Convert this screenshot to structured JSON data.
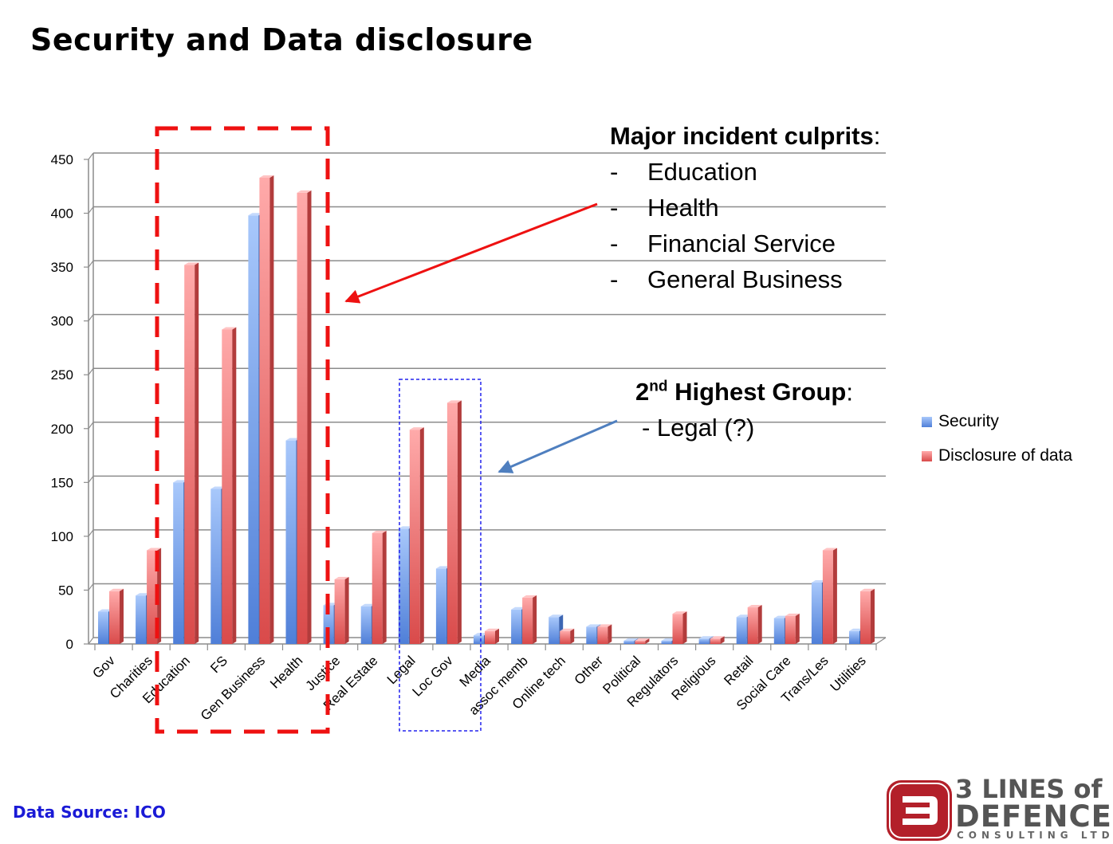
{
  "title": "Security and Data disclosure",
  "annotations": {
    "culprits_heading": "Major incident culprits",
    "culprits_colon": ":",
    "culprits_dash": "-",
    "culprits": [
      "Education",
      "Health",
      "Financial Service",
      "General Business"
    ],
    "second_heading_num": "2",
    "second_heading_sup": "nd",
    "second_heading_rest": " Highest Group",
    "second_colon": ":",
    "second_item": "- Legal (?)"
  },
  "legend": {
    "security": "Security",
    "disclosure": "Disclosure of data"
  },
  "data_source": "Data Source: ICO",
  "logo": {
    "line1": "3 LINES of",
    "line2": "DEFENCE",
    "line3": "CONSULTING LTD"
  },
  "colors": {
    "security": "#5b8fe0",
    "disclosure": "#e86a6a",
    "highlight_red": "#ee1111",
    "highlight_blue": "#2222ee",
    "arrow_blue": "#4f7fbf",
    "logo_red": "#b3202a"
  },
  "chart_data": {
    "type": "bar",
    "categories": [
      "Gov",
      "Charities",
      "Education",
      "FS",
      "Gen Business",
      "Health",
      "Justice",
      "Real Estate",
      "Legal",
      "Loc Gov",
      "Media",
      "assoc memb",
      "Online tech",
      "Other",
      "Political",
      "Regulators",
      "Religious",
      "Retail",
      "Social Care",
      "Trans/Les",
      "Utilities"
    ],
    "series": [
      {
        "name": "Security",
        "values": [
          30,
          45,
          150,
          144,
          398,
          189,
          36,
          35,
          107,
          70,
          8,
          32,
          25,
          16,
          3,
          3,
          5,
          25,
          24,
          57,
          12
        ]
      },
      {
        "name": "Disclosure of data",
        "values": [
          49,
          87,
          352,
          292,
          433,
          419,
          60,
          103,
          199,
          224,
          12,
          43,
          12,
          16,
          3,
          28,
          5,
          34,
          26,
          87,
          49
        ]
      }
    ],
    "yticks": [
      "0",
      "50",
      "100",
      "150",
      "200",
      "250",
      "300",
      "350",
      "400",
      "450"
    ],
    "ylim": [
      0,
      450
    ],
    "grid": true,
    "legend_position": "right"
  }
}
